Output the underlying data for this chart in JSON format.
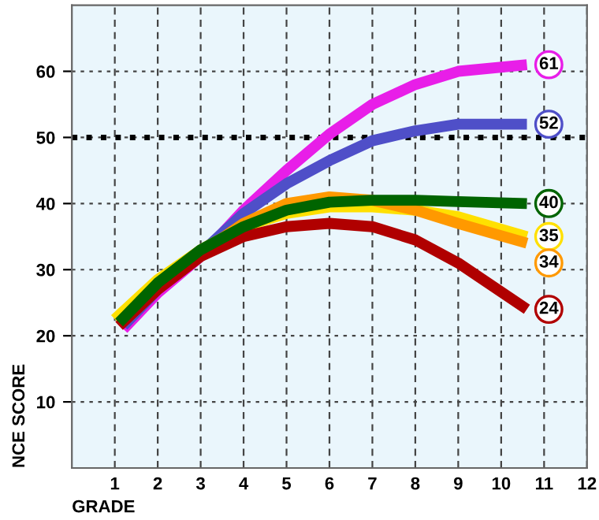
{
  "chart_data": {
    "type": "line",
    "xlabel": "GRADE",
    "ylabel": "NCE SCORE",
    "xlim": [
      0,
      12
    ],
    "ylim": [
      0,
      70
    ],
    "xticks": [
      1,
      2,
      3,
      4,
      5,
      6,
      7,
      8,
      9,
      10,
      11,
      12
    ],
    "yticks": [
      10,
      20,
      30,
      40,
      50,
      60
    ],
    "grid": true,
    "marker": "none",
    "line_style": "solid",
    "ref_lines": [
      {
        "axis": "y",
        "value": 50,
        "color": "#000000",
        "line_style": "dotted"
      }
    ],
    "series": [
      {
        "color": "#e81ee8",
        "x": [
          1.2,
          2,
          3,
          4,
          5,
          6,
          7,
          8,
          9,
          10.6
        ],
        "values": [
          21,
          26.5,
          32,
          39,
          45,
          50.5,
          55,
          58,
          60,
          61
        ],
        "value_labels": [
          null,
          null,
          null,
          null,
          null,
          null,
          null,
          null,
          null,
          "61"
        ]
      },
      {
        "color": "#4f4fc8",
        "x": [
          1.2,
          2,
          3,
          4,
          5,
          6,
          7,
          8,
          9,
          10.6
        ],
        "values": [
          21.5,
          27,
          32.5,
          38.5,
          43,
          46.5,
          49.5,
          51,
          52,
          52
        ],
        "value_labels": [
          null,
          null,
          null,
          null,
          null,
          null,
          null,
          null,
          null,
          "52"
        ]
      },
      {
        "color": "#ffe000",
        "x": [
          1,
          2,
          3,
          4,
          5,
          6,
          7,
          8,
          9,
          10.6
        ],
        "values": [
          22.5,
          28.5,
          33,
          36.5,
          38.5,
          39.5,
          39.5,
          39,
          38,
          35
        ],
        "value_labels": [
          null,
          null,
          null,
          null,
          null,
          null,
          null,
          null,
          null,
          "35"
        ]
      },
      {
        "color": "#ff9900",
        "x": [
          3,
          4,
          5,
          6,
          7,
          8,
          9,
          10.6
        ],
        "values": [
          32.5,
          37,
          40,
          41,
          40.5,
          39,
          37,
          34
        ],
        "value_labels": [
          null,
          null,
          null,
          null,
          null,
          null,
          null,
          "34"
        ]
      },
      {
        "color": "#b00000",
        "x": [
          1.1,
          2,
          3,
          4,
          5,
          6,
          7,
          8,
          9,
          10.6
        ],
        "values": [
          21.5,
          27,
          32,
          35,
          36.5,
          37,
          36.5,
          34.5,
          31,
          24
        ],
        "value_labels": [
          null,
          null,
          null,
          null,
          null,
          null,
          null,
          null,
          null,
          "24"
        ]
      },
      {
        "color": "#006400",
        "x": [
          1.1,
          2,
          3,
          4,
          5,
          6,
          7,
          8,
          9,
          10.6
        ],
        "values": [
          22,
          28,
          33,
          36.5,
          39,
          40.2,
          40.5,
          40.5,
          40.3,
          40
        ],
        "value_labels": [
          null,
          null,
          null,
          null,
          null,
          null,
          null,
          null,
          null,
          "40"
        ]
      }
    ]
  }
}
